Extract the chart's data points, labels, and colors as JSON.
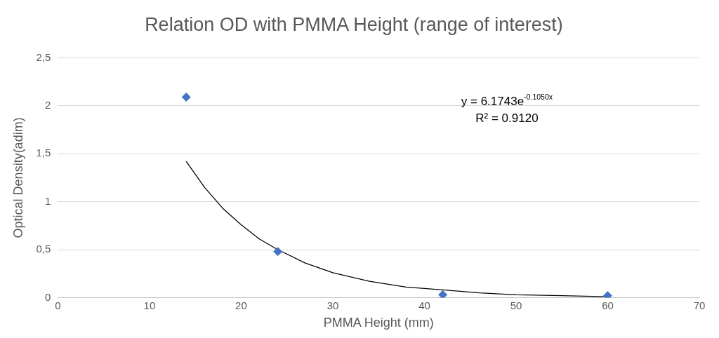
{
  "chart_data": {
    "type": "scatter",
    "title": "Relation OD with PMMA Height (range of interest)",
    "xlabel": "PMMA Height (mm)",
    "ylabel": "Optical Density(adim)",
    "xlim": [
      0,
      70
    ],
    "xticks": [
      0,
      10,
      20,
      30,
      40,
      50,
      60,
      70
    ],
    "ylim": [
      0,
      2.5
    ],
    "yticks": [
      0,
      {
        "value": 0.5,
        "label": "0,5"
      },
      1,
      {
        "value": 1.5,
        "label": "1,5"
      },
      2,
      {
        "value": 2.5,
        "label": "2,5"
      }
    ],
    "grid": "y",
    "legend": false,
    "marker": "diamond",
    "series": [
      {
        "type": "scatter",
        "color": "#4472c4",
        "x": [
          14,
          24,
          42,
          60
        ],
        "values": [
          2.09,
          0.48,
          0.03,
          0.02
        ]
      },
      {
        "type": "line",
        "color": "#000000",
        "marker": "none",
        "x": [
          14,
          16,
          18,
          20,
          22,
          24,
          27,
          30,
          34,
          38,
          42,
          46,
          50,
          55,
          60
        ],
        "values": [
          1.42,
          1.15,
          0.93,
          0.76,
          0.61,
          0.5,
          0.36,
          0.26,
          0.17,
          0.11,
          0.08,
          0.05,
          0.03,
          0.02,
          0.01
        ]
      }
    ],
    "annotations": [
      "y = 6.1743e$^{-0.1050x}$",
      "R² = 0.9120"
    ]
  }
}
